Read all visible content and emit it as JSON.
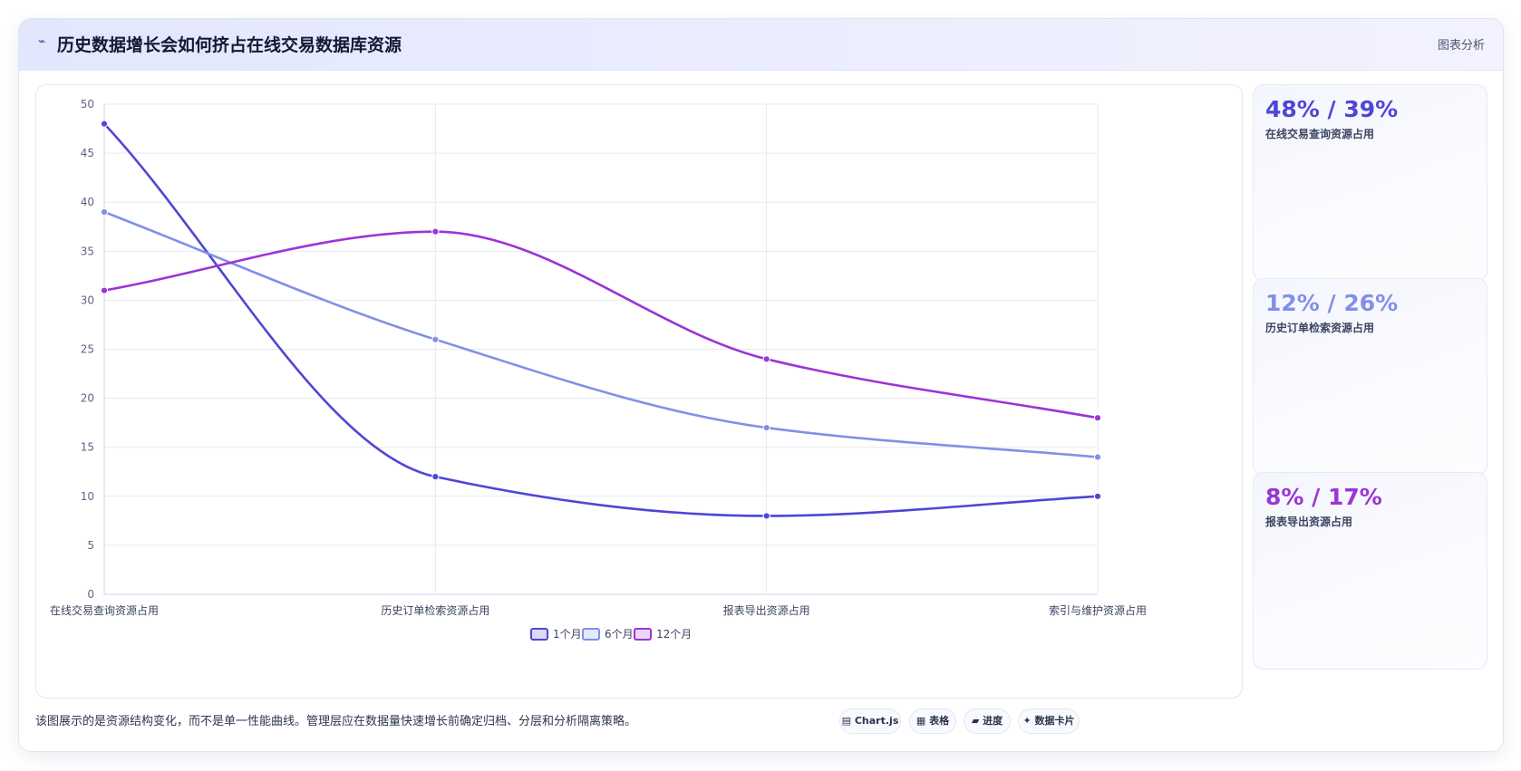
{
  "header": {
    "icon": "trend-icon",
    "title": "历史数据增长会如何挤占在线交易数据库资源",
    "tag": "图表分析"
  },
  "chart_data": {
    "type": "line",
    "categories": [
      "在线交易查询资源占用",
      "历史订单检索资源占用",
      "报表导出资源占用",
      "索引与维护资源占用"
    ],
    "series": [
      {
        "name": "1个月",
        "values": [
          48,
          12,
          8,
          10
        ],
        "color": "#4f46d5"
      },
      {
        "name": "6个月",
        "values": [
          39,
          26,
          17,
          14
        ],
        "color": "#8090e8"
      },
      {
        "name": "12个月",
        "values": [
          31,
          37,
          24,
          18
        ],
        "color": "#9b35d6"
      }
    ],
    "ylim": [
      0,
      50
    ],
    "yticks": [
      0,
      5,
      10,
      15,
      20,
      25,
      30,
      35,
      40,
      45,
      50
    ],
    "grid": true,
    "legend": "bottom-center"
  },
  "stats": [
    {
      "value": "48% / 39%",
      "label": "在线交易查询资源占用",
      "color": "#4f46d5"
    },
    {
      "value": "12% / 26%",
      "label": "历史订单检索资源占用",
      "color": "#8190e6"
    },
    {
      "value": "8% / 17%",
      "label": "报表导出资源占用",
      "color": "#9b35d6"
    }
  ],
  "footer": {
    "note": "该图展示的是资源结构变化，而不是单一性能曲线。管理层应在数据量快速增长前确定归档、分层和分析隔离策略。",
    "badges": [
      {
        "icon": "chart-icon",
        "glyph": "▤",
        "label": "Chart.js"
      },
      {
        "icon": "table-icon",
        "glyph": "▦",
        "label": "表格"
      },
      {
        "icon": "progress-icon",
        "glyph": "▰",
        "label": "进度"
      },
      {
        "icon": "sparkle-icon",
        "glyph": "✦",
        "label": "数据卡片"
      }
    ]
  }
}
